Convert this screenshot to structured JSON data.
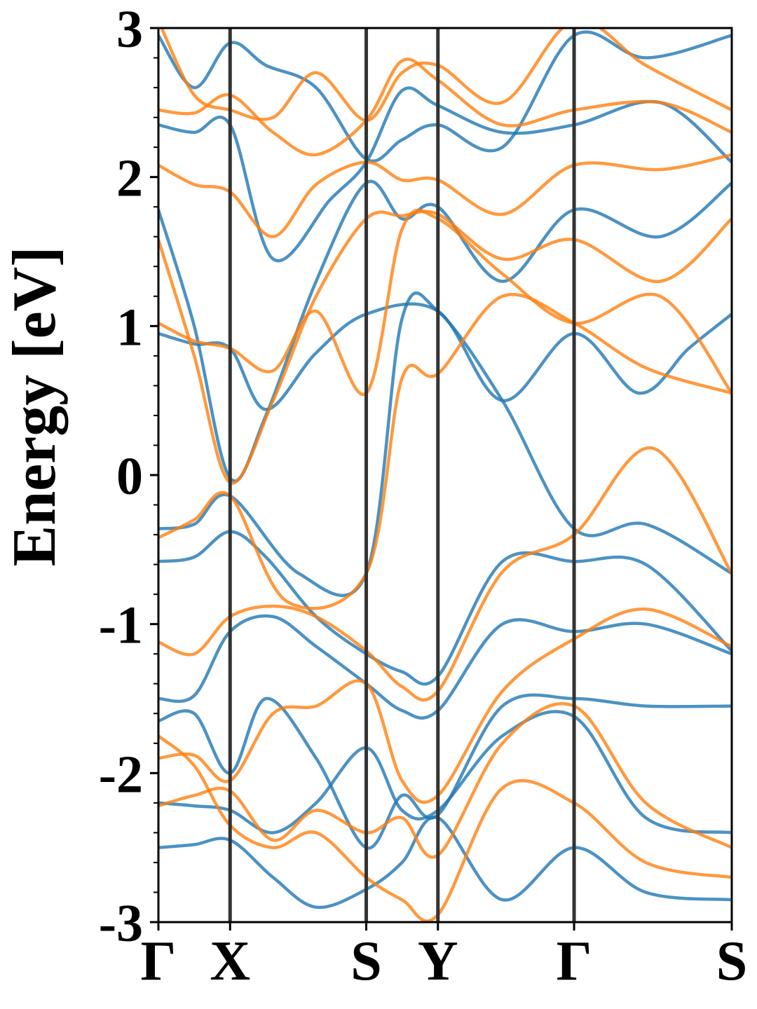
{
  "chart_data": {
    "type": "line",
    "title": "",
    "xlabel": "",
    "ylabel": "Energy [eV]",
    "ylim": [
      -3,
      3
    ],
    "yticks": [
      -3,
      -2,
      -1,
      0,
      1,
      2,
      3
    ],
    "ytick_labels": [
      "-3",
      "-2",
      "-1",
      "0",
      "1",
      "2",
      "3"
    ],
    "minor_yticks_per_major": 5,
    "x_high_symbol_labels": [
      "Γ",
      "X",
      "S",
      "Y",
      "Γ",
      "S"
    ],
    "x_high_symbol_positions": [
      0,
      0.5,
      1.45,
      1.95,
      2.9,
      4.0
    ],
    "xlim": [
      0,
      4.0
    ],
    "grid": false,
    "colors": {
      "spin_up": "#1f77b4",
      "spin_down": "#ff7f0e",
      "kpath_lines": "#333333",
      "axes": "#000000"
    },
    "series": [
      {
        "color_key": "spin_up",
        "bands": [
          [
            [
              0,
              -0.36
            ],
            [
              0.25,
              -0.33
            ],
            [
              0.5,
              -0.14
            ],
            [
              0.98,
              -0.66
            ],
            [
              1.45,
              -0.66
            ],
            [
              1.7,
              1.05
            ],
            [
              1.95,
              1.1
            ],
            [
              2.4,
              0.5
            ],
            [
              2.9,
              -0.36
            ],
            [
              3.4,
              -0.33
            ],
            [
              4.0,
              -0.66
            ]
          ],
          [
            [
              0,
              0.95
            ],
            [
              0.25,
              0.88
            ],
            [
              0.5,
              0.85
            ],
            [
              0.75,
              0.44
            ],
            [
              1.1,
              0.82
            ],
            [
              1.45,
              1.08
            ],
            [
              1.95,
              1.1
            ],
            [
              2.4,
              0.5
            ],
            [
              2.9,
              0.95
            ],
            [
              3.35,
              0.55
            ],
            [
              3.7,
              0.85
            ],
            [
              4.0,
              1.08
            ]
          ],
          [
            [
              0,
              1.78
            ],
            [
              0.25,
              1.0
            ],
            [
              0.5,
              -0.02
            ],
            [
              0.75,
              0.4
            ],
            [
              1.1,
              1.3
            ],
            [
              1.45,
              1.96
            ],
            [
              1.7,
              1.72
            ],
            [
              1.95,
              1.8
            ],
            [
              2.4,
              1.3
            ],
            [
              2.9,
              1.78
            ],
            [
              3.5,
              1.6
            ],
            [
              4.0,
              1.96
            ]
          ],
          [
            [
              0,
              2.35
            ],
            [
              0.25,
              2.3
            ],
            [
              0.5,
              2.35
            ],
            [
              0.8,
              1.45
            ],
            [
              1.2,
              1.85
            ],
            [
              1.45,
              2.1
            ],
            [
              1.7,
              2.58
            ],
            [
              1.95,
              2.48
            ],
            [
              2.4,
              2.3
            ],
            [
              2.9,
              2.35
            ],
            [
              3.5,
              2.5
            ],
            [
              4.0,
              2.1
            ]
          ],
          [
            [
              0,
              -0.58
            ],
            [
              0.25,
              -0.55
            ],
            [
              0.5,
              -0.38
            ],
            [
              0.75,
              -0.55
            ],
            [
              1.1,
              -0.95
            ],
            [
              1.45,
              -1.2
            ],
            [
              1.7,
              -1.32
            ],
            [
              1.95,
              -1.35
            ],
            [
              2.4,
              -0.58
            ],
            [
              2.9,
              -0.58
            ],
            [
              3.4,
              -0.6
            ],
            [
              4.0,
              -1.18
            ]
          ],
          [
            [
              0,
              -1.5
            ],
            [
              0.25,
              -1.48
            ],
            [
              0.5,
              -1.05
            ],
            [
              0.8,
              -0.95
            ],
            [
              1.1,
              -1.15
            ],
            [
              1.45,
              -1.4
            ],
            [
              1.7,
              -1.58
            ],
            [
              1.95,
              -1.58
            ],
            [
              2.4,
              -1.0
            ],
            [
              2.9,
              -1.05
            ],
            [
              3.4,
              -1.0
            ],
            [
              4.0,
              -1.2
            ]
          ],
          [
            [
              0,
              -1.65
            ],
            [
              0.25,
              -1.6
            ],
            [
              0.5,
              -2.0
            ],
            [
              0.75,
              -1.5
            ],
            [
              1.1,
              -1.9
            ],
            [
              1.45,
              -2.5
            ],
            [
              1.7,
              -2.15
            ],
            [
              1.95,
              -2.28
            ],
            [
              2.4,
              -1.55
            ],
            [
              2.9,
              -1.5
            ],
            [
              3.4,
              -1.55
            ],
            [
              4.0,
              -1.55
            ]
          ],
          [
            [
              0,
              -2.2
            ],
            [
              0.25,
              -2.22
            ],
            [
              0.5,
              -2.25
            ],
            [
              0.8,
              -2.4
            ],
            [
              1.1,
              -2.2
            ],
            [
              1.45,
              -1.83
            ],
            [
              1.7,
              -2.25
            ],
            [
              1.95,
              -2.25
            ],
            [
              2.4,
              -1.75
            ],
            [
              2.9,
              -1.62
            ],
            [
              3.4,
              -2.3
            ],
            [
              4.0,
              -2.4
            ]
          ],
          [
            [
              0,
              -2.5
            ],
            [
              0.25,
              -2.48
            ],
            [
              0.5,
              -2.45
            ],
            [
              0.8,
              -2.7
            ],
            [
              1.1,
              -2.9
            ],
            [
              1.45,
              -2.78
            ],
            [
              1.7,
              -2.6
            ],
            [
              1.95,
              -2.3
            ],
            [
              2.4,
              -2.85
            ],
            [
              2.9,
              -2.5
            ],
            [
              3.4,
              -2.8
            ],
            [
              4.0,
              -2.85
            ]
          ],
          [
            [
              0,
              2.95
            ],
            [
              0.25,
              2.6
            ],
            [
              0.5,
              2.9
            ],
            [
              0.75,
              2.75
            ],
            [
              1.1,
              2.6
            ],
            [
              1.45,
              2.12
            ],
            [
              1.7,
              2.25
            ],
            [
              1.95,
              2.35
            ],
            [
              2.4,
              2.2
            ],
            [
              2.9,
              2.95
            ],
            [
              3.4,
              2.8
            ],
            [
              4.0,
              2.95
            ]
          ]
        ]
      },
      {
        "color_key": "spin_down",
        "bands": [
          [
            [
              0,
              -0.42
            ],
            [
              0.25,
              -0.3
            ],
            [
              0.5,
              -0.14
            ],
            [
              0.9,
              -0.85
            ],
            [
              1.45,
              -0.66
            ],
            [
              1.7,
              0.65
            ],
            [
              1.95,
              0.68
            ],
            [
              2.4,
              1.2
            ],
            [
              2.9,
              1.02
            ],
            [
              3.4,
              0.72
            ],
            [
              4.0,
              0.55
            ]
          ],
          [
            [
              0,
              1.02
            ],
            [
              0.25,
              0.9
            ],
            [
              0.5,
              0.85
            ],
            [
              0.8,
              0.7
            ],
            [
              1.1,
              1.1
            ],
            [
              1.45,
              0.55
            ],
            [
              1.7,
              1.65
            ],
            [
              1.95,
              1.72
            ],
            [
              2.4,
              1.35
            ],
            [
              2.9,
              1.02
            ],
            [
              3.5,
              1.2
            ],
            [
              4.0,
              0.55
            ]
          ],
          [
            [
              0,
              1.58
            ],
            [
              0.25,
              0.8
            ],
            [
              0.5,
              -0.05
            ],
            [
              0.8,
              0.5
            ],
            [
              1.1,
              1.2
            ],
            [
              1.45,
              1.72
            ],
            [
              1.7,
              1.74
            ],
            [
              1.95,
              1.75
            ],
            [
              2.4,
              1.45
            ],
            [
              2.9,
              1.58
            ],
            [
              3.5,
              1.3
            ],
            [
              4.0,
              1.72
            ]
          ],
          [
            [
              0,
              2.45
            ],
            [
              0.25,
              2.43
            ],
            [
              0.5,
              2.55
            ],
            [
              0.8,
              2.3
            ],
            [
              1.1,
              2.15
            ],
            [
              1.45,
              2.38
            ],
            [
              1.7,
              2.78
            ],
            [
              1.95,
              2.65
            ],
            [
              2.4,
              2.35
            ],
            [
              2.9,
              2.45
            ],
            [
              3.5,
              2.5
            ],
            [
              4.0,
              2.3
            ]
          ],
          [
            [
              0,
              2.08
            ],
            [
              0.25,
              1.95
            ],
            [
              0.5,
              1.9
            ],
            [
              0.8,
              1.6
            ],
            [
              1.1,
              1.95
            ],
            [
              1.45,
              2.1
            ],
            [
              1.7,
              1.98
            ],
            [
              1.95,
              1.98
            ],
            [
              2.4,
              1.75
            ],
            [
              2.9,
              2.08
            ],
            [
              3.5,
              2.05
            ],
            [
              4.0,
              2.15
            ]
          ],
          [
            [
              0,
              -1.12
            ],
            [
              0.25,
              -1.2
            ],
            [
              0.5,
              -0.95
            ],
            [
              0.8,
              -0.88
            ],
            [
              1.1,
              -0.95
            ],
            [
              1.45,
              -1.18
            ],
            [
              1.7,
              -1.42
            ],
            [
              1.95,
              -1.45
            ],
            [
              2.4,
              -0.65
            ],
            [
              2.9,
              -0.4
            ],
            [
              3.45,
              0.18
            ],
            [
              4.0,
              -0.66
            ]
          ],
          [
            [
              0,
              -1.9
            ],
            [
              0.25,
              -1.88
            ],
            [
              0.5,
              -2.05
            ],
            [
              0.8,
              -1.6
            ],
            [
              1.1,
              -1.55
            ],
            [
              1.45,
              -1.4
            ],
            [
              1.7,
              -2.05
            ],
            [
              1.95,
              -2.15
            ],
            [
              2.4,
              -1.45
            ],
            [
              2.9,
              -1.1
            ],
            [
              3.4,
              -0.9
            ],
            [
              4.0,
              -1.15
            ]
          ],
          [
            [
              0,
              -2.22
            ],
            [
              0.25,
              -2.15
            ],
            [
              0.5,
              -2.12
            ],
            [
              0.8,
              -2.45
            ],
            [
              1.1,
              -2.25
            ],
            [
              1.45,
              -2.4
            ],
            [
              1.7,
              -2.3
            ],
            [
              1.95,
              -2.55
            ],
            [
              2.4,
              -1.8
            ],
            [
              2.9,
              -1.55
            ],
            [
              3.4,
              -2.2
            ],
            [
              4.0,
              -2.5
            ]
          ],
          [
            [
              0,
              -1.75
            ],
            [
              0.25,
              -1.95
            ],
            [
              0.5,
              -2.35
            ],
            [
              0.8,
              -2.5
            ],
            [
              1.1,
              -2.4
            ],
            [
              1.45,
              -2.7
            ],
            [
              1.7,
              -2.85
            ],
            [
              1.95,
              -2.95
            ],
            [
              2.4,
              -2.1
            ],
            [
              2.9,
              -2.2
            ],
            [
              3.4,
              -2.6
            ],
            [
              4.0,
              -2.7
            ]
          ],
          [
            [
              0,
              3.05
            ],
            [
              0.25,
              2.55
            ],
            [
              0.5,
              2.45
            ],
            [
              0.8,
              2.4
            ],
            [
              1.1,
              2.7
            ],
            [
              1.45,
              2.38
            ],
            [
              1.7,
              2.7
            ],
            [
              1.95,
              2.75
            ],
            [
              2.4,
              2.5
            ],
            [
              2.9,
              3.05
            ],
            [
              3.4,
              2.75
            ],
            [
              4.0,
              2.45
            ]
          ]
        ]
      }
    ]
  }
}
